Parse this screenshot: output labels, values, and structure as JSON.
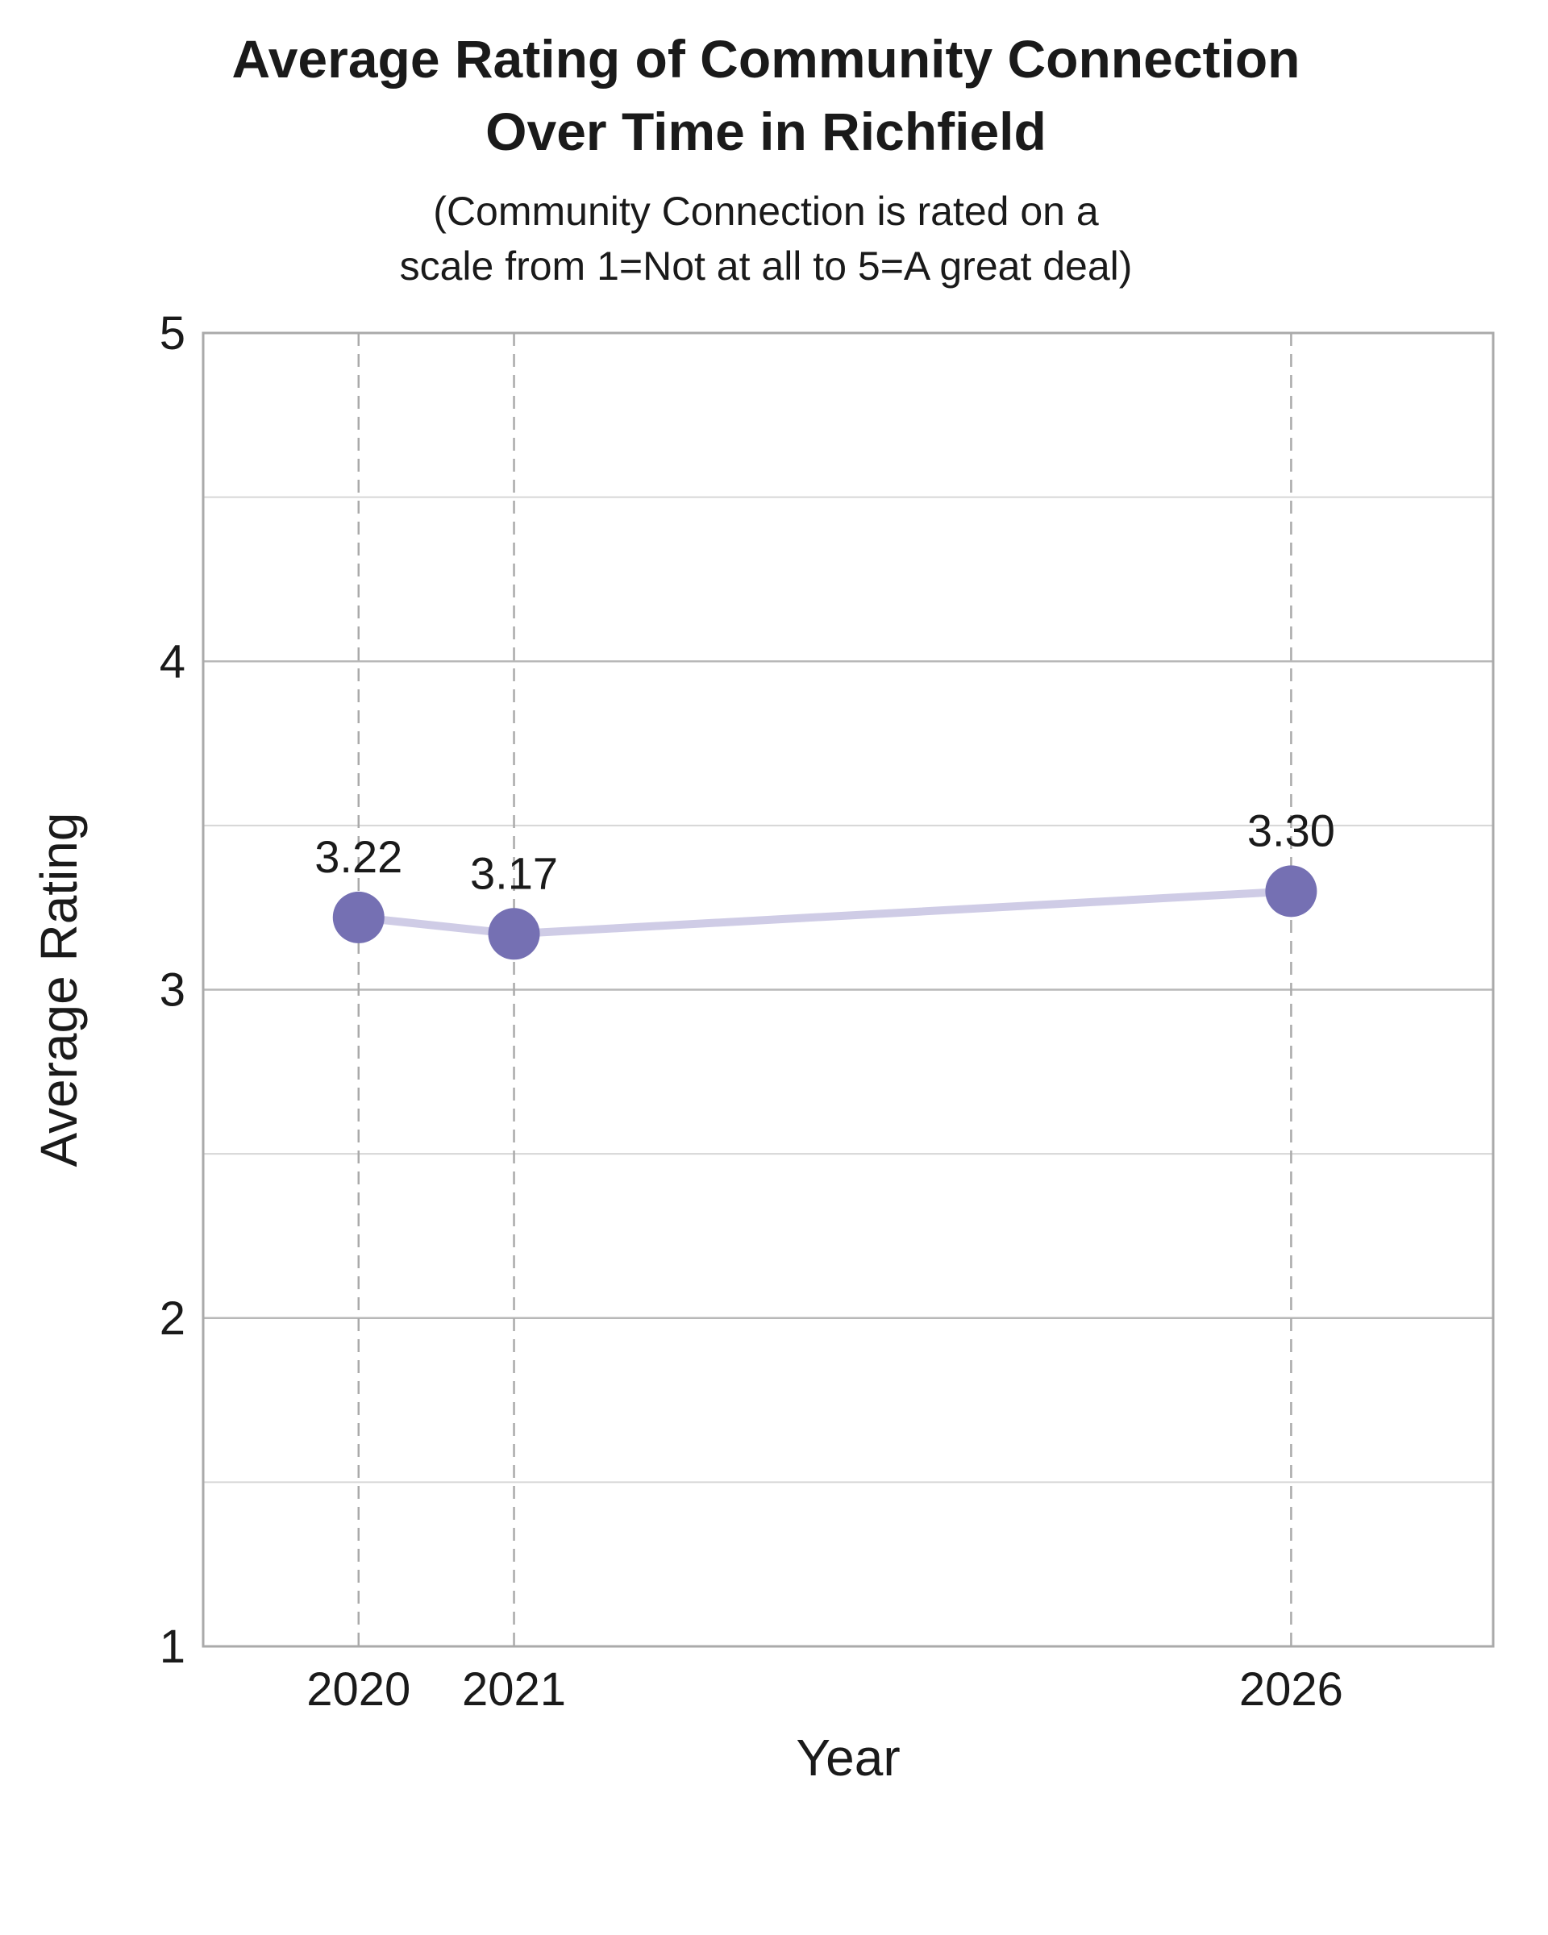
{
  "chart_data": {
    "type": "line",
    "title_lines": [
      "Average Rating of Community Connection",
      "Over Time in Richfield"
    ],
    "subtitle_lines": [
      "(Community Connection is rated on a",
      "scale from 1=Not at all to 5=A great deal)"
    ],
    "xlabel": "Year",
    "ylabel": "Average Rating",
    "x": [
      2020,
      2021,
      2026
    ],
    "x_tick_labels": [
      "2020",
      "2021",
      "2026"
    ],
    "xlim": [
      2019,
      2027.3
    ],
    "ylim": [
      1,
      5
    ],
    "y_ticks": [
      1,
      2,
      3,
      4,
      5
    ],
    "y_tick_labels": [
      "1",
      "2",
      "3",
      "4",
      "5"
    ],
    "series": [
      {
        "values": [
          3.22,
          3.17,
          3.3
        ],
        "data_labels": [
          "3.22",
          "3.17",
          "3.30"
        ]
      }
    ],
    "grid": true,
    "colors": {
      "marker": "#7570b3",
      "line": "#cfcce6",
      "grid": "#c8c8c8",
      "frame": "#aaaaaa"
    }
  }
}
